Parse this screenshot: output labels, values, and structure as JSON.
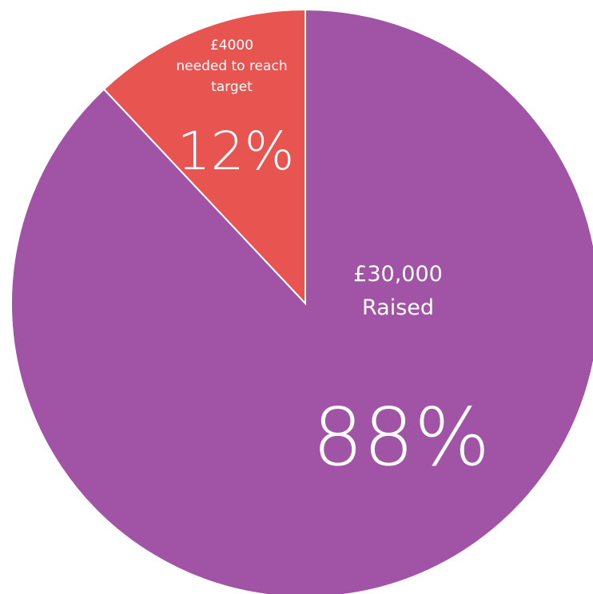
{
  "chart_data": {
    "type": "pie",
    "title": "",
    "categories": [
      "Raised",
      "needed to reach target"
    ],
    "series": [
      {
        "values": [
          30000,
          4000
        ]
      }
    ],
    "slices": [
      {
        "percent": 88,
        "percent_label": "88%",
        "amount_label": "£30,000",
        "caption": "Raised",
        "color": "#a154a5"
      },
      {
        "percent": 12,
        "percent_label": "12%",
        "amount_label": "£4000",
        "caption_lines": [
          "needed to reach",
          "target"
        ],
        "color": "#e85450"
      }
    ],
    "start_angle_deg": 0,
    "direction": "counterclockwise-for-small-slice"
  }
}
